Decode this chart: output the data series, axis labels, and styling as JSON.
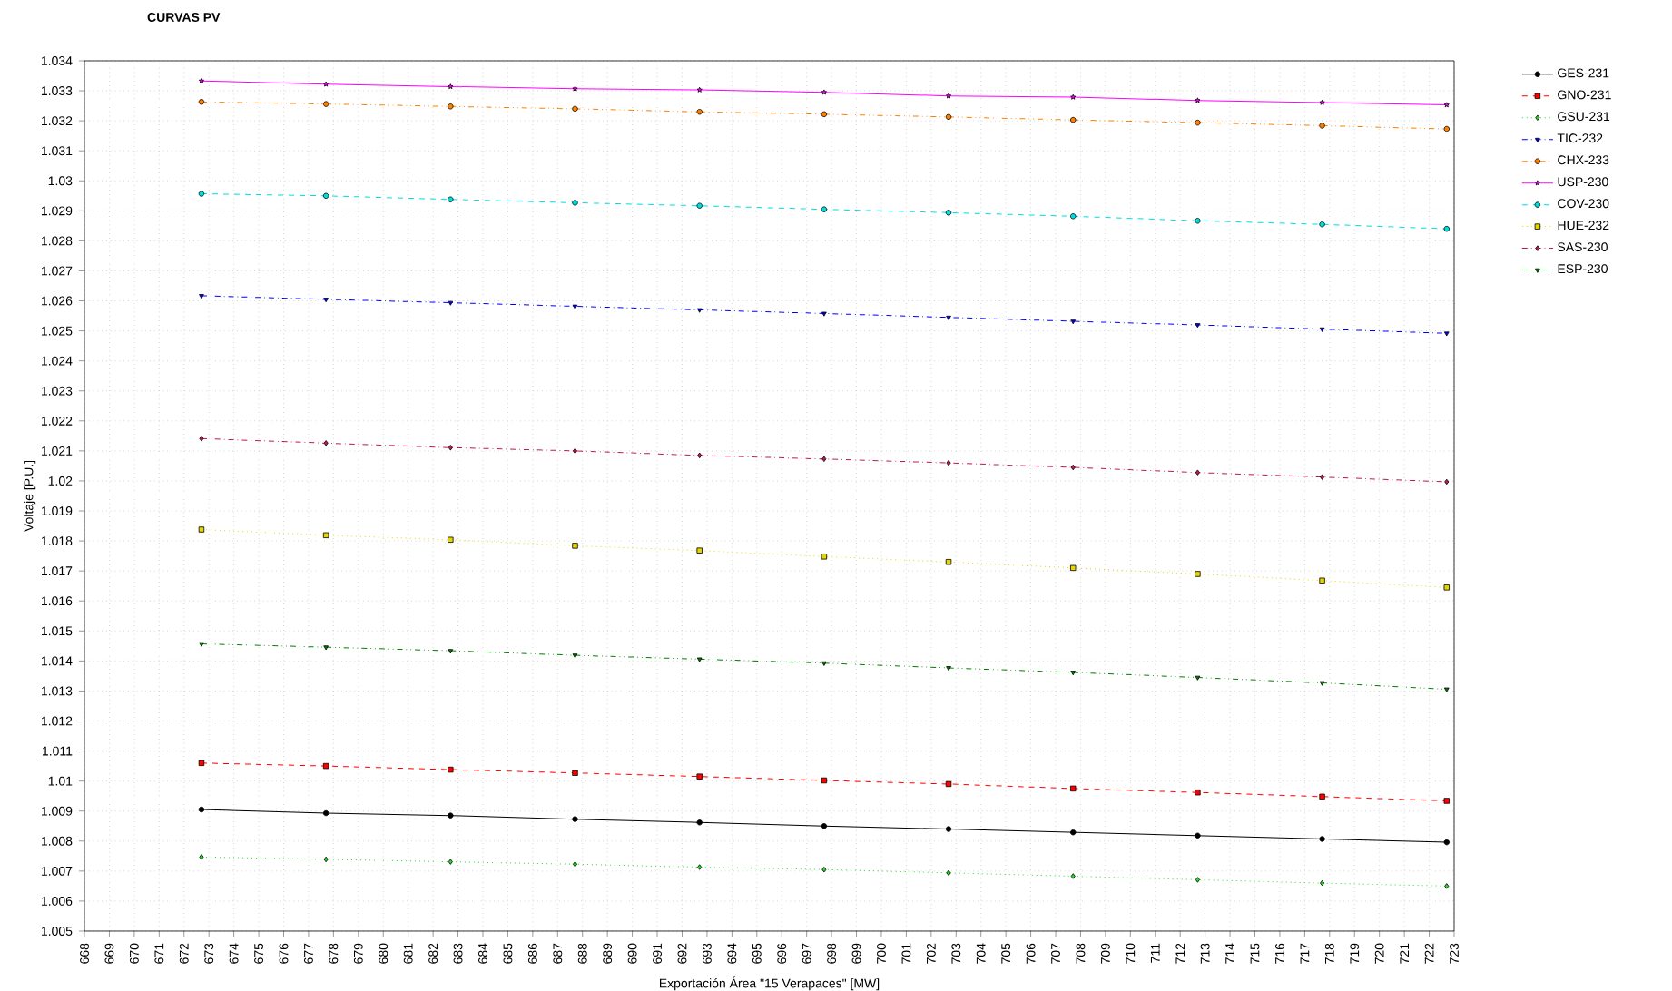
{
  "chart_data": {
    "type": "line",
    "title": "CURVAS PV",
    "xlabel": "Exportación Área \"15 Verapaces\" [MW]",
    "ylabel": "Voltaje [P.U.]",
    "x": [
      672.7,
      677.7,
      682.7,
      687.7,
      692.7,
      697.7,
      702.7,
      707.7,
      712.7,
      717.7,
      722.7
    ],
    "xlim": [
      668,
      723
    ],
    "xticks": [
      668,
      669,
      670,
      671,
      672,
      673,
      674,
      675,
      676,
      677,
      678,
      679,
      680,
      681,
      682,
      683,
      684,
      685,
      686,
      687,
      688,
      689,
      690,
      691,
      692,
      693,
      694,
      695,
      696,
      697,
      698,
      699,
      700,
      701,
      702,
      703,
      704,
      705,
      706,
      707,
      708,
      709,
      710,
      711,
      712,
      713,
      714,
      715,
      716,
      717,
      718,
      719,
      720,
      721,
      722,
      723
    ],
    "ylim": [
      1.005,
      1.034
    ],
    "yticks": [
      1.005,
      1.006,
      1.007,
      1.008,
      1.009,
      1.01,
      1.011,
      1.012,
      1.013,
      1.014,
      1.015,
      1.016,
      1.017,
      1.018,
      1.019,
      1.02,
      1.021,
      1.022,
      1.023,
      1.024,
      1.025,
      1.026,
      1.027,
      1.028,
      1.029,
      1.03,
      1.031,
      1.032,
      1.033,
      1.034
    ],
    "grid": true,
    "legend": "top right",
    "series": [
      {
        "name": "GES-231",
        "color": "#000000",
        "line_style": "solid",
        "marker": "circle",
        "values": [
          1.00905,
          1.00893,
          1.00885,
          1.00873,
          1.00862,
          1.0085,
          1.0084,
          1.00829,
          1.00818,
          1.00807,
          1.00796
        ]
      },
      {
        "name": "GNO-231",
        "color": "#ff0000",
        "line_style": "dashed",
        "marker": "square",
        "values": [
          1.0106,
          1.0105,
          1.01038,
          1.01027,
          1.01015,
          1.01002,
          1.0099,
          1.00975,
          1.00962,
          1.00948,
          1.00934
        ]
      },
      {
        "name": "GSU-231",
        "color": "#22dd22",
        "line_style": "dotted",
        "marker": "diamond",
        "values": [
          1.00747,
          1.00739,
          1.00731,
          1.00723,
          1.00713,
          1.00705,
          1.00694,
          1.00683,
          1.00671,
          1.0066,
          1.0065
        ]
      },
      {
        "name": "TIC-232",
        "color": "#0000ff",
        "line_style": "dashdot",
        "marker": "triangle",
        "values": [
          1.02617,
          1.02605,
          1.02594,
          1.02582,
          1.0257,
          1.02558,
          1.02545,
          1.02532,
          1.0252,
          1.02506,
          1.02492
        ]
      },
      {
        "name": "CHX-233",
        "color": "#ff8000",
        "line_style": "dashdotdot",
        "marker": "circle",
        "values": [
          1.03263,
          1.03256,
          1.03248,
          1.0324,
          1.0323,
          1.03222,
          1.03213,
          1.03203,
          1.03194,
          1.03184,
          1.03173
        ]
      },
      {
        "name": "USP-230",
        "color": "#ff00ff",
        "line_style": "solid",
        "marker": "star",
        "values": [
          1.03333,
          1.03322,
          1.03314,
          1.03307,
          1.03303,
          1.03295,
          1.03283,
          1.03279,
          1.03268,
          1.03261,
          1.03253
        ]
      },
      {
        "name": "COV-230",
        "color": "#00dddd",
        "line_style": "dashed",
        "marker": "circle",
        "values": [
          1.02957,
          1.0295,
          1.02938,
          1.02927,
          1.02917,
          1.02905,
          1.02894,
          1.02882,
          1.02867,
          1.02855,
          1.0284
        ]
      },
      {
        "name": "HUE-232",
        "color": "#e6d600",
        "line_style": "dotted",
        "marker": "square",
        "values": [
          1.01838,
          1.01819,
          1.01804,
          1.01784,
          1.01768,
          1.01748,
          1.0173,
          1.0171,
          1.0169,
          1.01668,
          1.01645
        ]
      },
      {
        "name": "SAS-230",
        "color": "#c0184f",
        "line_style": "dashdot",
        "marker": "diamond",
        "values": [
          1.02141,
          1.02126,
          1.02111,
          1.021,
          1.02085,
          1.02073,
          1.0206,
          1.02045,
          1.02028,
          1.02013,
          1.01997
        ]
      },
      {
        "name": "ESP-230",
        "color": "#008000",
        "line_style": "dashdotdot",
        "marker": "triangle",
        "values": [
          1.01457,
          1.01446,
          1.01434,
          1.01419,
          1.01406,
          1.01393,
          1.01377,
          1.01362,
          1.01345,
          1.01327,
          1.01306
        ]
      }
    ]
  }
}
